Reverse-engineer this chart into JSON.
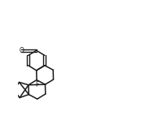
{
  "bg": "#ffffff",
  "lc": "#1a1a1a",
  "lw": 1.1,
  "fs": 5.5
}
